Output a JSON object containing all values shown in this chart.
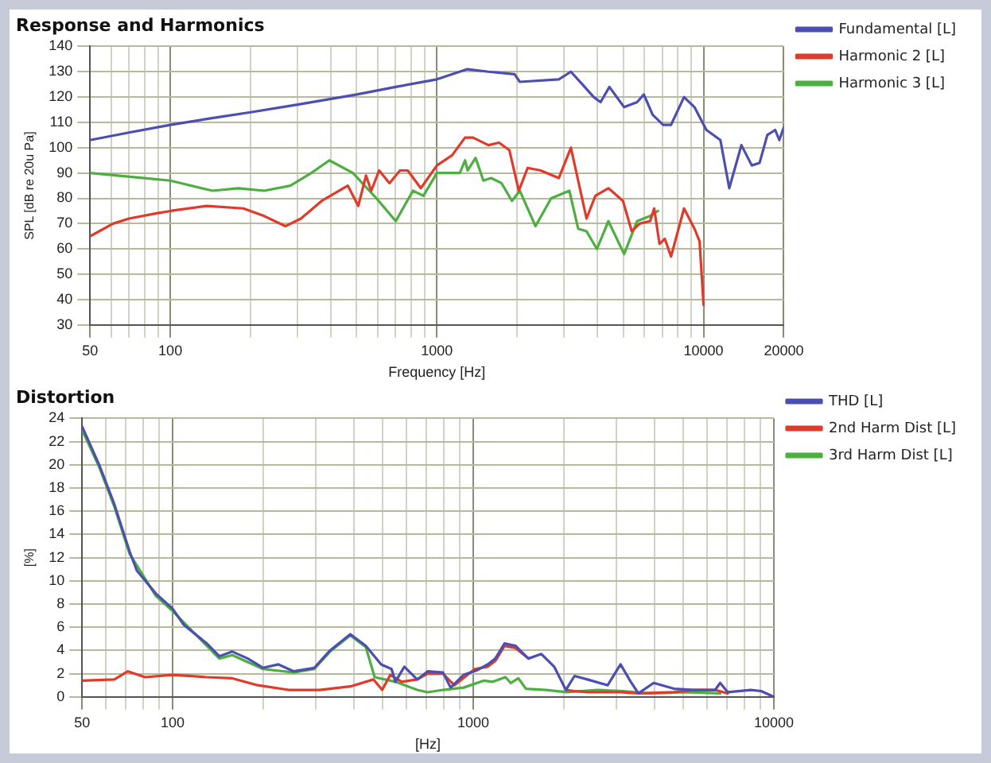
{
  "chart_data": [
    {
      "type": "line",
      "title": "Response and Harmonics",
      "xlabel": "Frequency [Hz]",
      "ylabel": "SPL [dB re 20u Pa]",
      "log": "x",
      "grid": true,
      "legend": "top right",
      "marker": "none",
      "line_style": "solid",
      "xlim": [
        50,
        20000
      ],
      "ylim": [
        30,
        140
      ],
      "xticks": [
        50,
        {
          "value": 60,
          "label": null
        },
        {
          "value": 70,
          "label": null
        },
        {
          "value": 80,
          "label": null
        },
        {
          "value": 90,
          "label": null
        },
        100,
        {
          "value": 200,
          "label": null
        },
        {
          "value": 300,
          "label": null
        },
        {
          "value": 400,
          "label": null
        },
        {
          "value": 500,
          "label": null
        },
        {
          "value": 600,
          "label": null
        },
        {
          "value": 700,
          "label": null
        },
        {
          "value": 800,
          "label": null
        },
        {
          "value": 900,
          "label": null
        },
        1000,
        {
          "value": 2000,
          "label": null
        },
        {
          "value": 3000,
          "label": null
        },
        {
          "value": 4000,
          "label": null
        },
        {
          "value": 5000,
          "label": null
        },
        {
          "value": 6000,
          "label": null
        },
        {
          "value": 7000,
          "label": null
        },
        {
          "value": 8000,
          "label": null
        },
        {
          "value": 9000,
          "label": null
        },
        10000,
        20000
      ],
      "yticks": [
        30,
        40,
        50,
        60,
        70,
        80,
        90,
        100,
        110,
        120,
        130,
        140
      ],
      "series": [
        {
          "name": "Fundamental [L]",
          "color": "#4b4fb0",
          "x": [
            50,
            70,
            100,
            150,
            200,
            300,
            500,
            700,
            1000,
            1300,
            1560,
            1956,
            2046,
            2865,
            3181,
            3512,
            3873,
            4110,
            4436,
            5037,
            5634,
            5973,
            6443,
            7057,
            7553,
            8450,
            9248,
            10250,
            11570,
            12490,
            13870,
            15170,
            16230,
            17350,
            18570,
            19240,
            20000
          ],
          "values": [
            103,
            106,
            109,
            112,
            114,
            117,
            121,
            124,
            127,
            131,
            130,
            129,
            126,
            127,
            130,
            125,
            120,
            118,
            124,
            116,
            118,
            121,
            113,
            109,
            109,
            120,
            116,
            107,
            103,
            84,
            101,
            93,
            94,
            105,
            107,
            103,
            108
          ]
        },
        {
          "name": "Harmonic 2 [L]",
          "color": "#e03a2a",
          "x": [
            50,
            61,
            70,
            88,
            100,
            137,
            188,
            225,
            270,
            309,
            370,
            463,
            507,
            542,
            567,
            607,
            664,
            727,
            777,
            870,
            1000,
            1140,
            1275,
            1365,
            1560,
            1710,
            1870,
            2028,
            2189,
            2449,
            2865,
            3181,
            3387,
            3640,
            3929,
            4397,
            4986,
            5380,
            5760,
            6300,
            6530,
            6837,
            7160,
            7553,
            8450,
            9248,
            9665,
            10000
          ],
          "values": [
            65,
            70,
            72,
            74,
            75,
            77,
            76,
            73,
            69,
            72,
            79,
            85,
            77,
            89,
            83,
            91,
            86,
            91,
            91,
            84,
            93,
            97,
            104,
            104,
            101,
            102,
            99,
            83,
            92,
            91,
            88,
            100,
            87,
            72,
            81,
            84,
            79,
            67,
            70,
            71,
            76,
            62,
            64,
            57,
            76,
            68,
            63,
            38
          ]
        },
        {
          "name": "Harmonic 3 [L]",
          "color": "#4caf3f",
          "x": [
            50,
            80,
            100,
            144,
            180,
            225,
            282,
            338,
            395,
            484,
            593,
            701,
            813,
            890,
            1000,
            1219,
            1275,
            1304,
            1396,
            1494,
            1597,
            1746,
            1912,
            2046,
            2343,
            2681,
            3139,
            3387,
            3640,
            3983,
            4397,
            5037,
            5634,
            6300,
            6745
          ],
          "values": [
            90,
            88,
            87,
            83,
            84,
            83,
            85,
            90,
            95,
            90,
            80,
            71,
            83,
            81,
            90,
            90,
            95,
            91,
            96,
            87,
            88,
            86,
            79,
            83,
            69,
            80,
            83,
            68,
            67,
            60,
            71,
            58,
            71,
            73,
            75
          ]
        }
      ]
    },
    {
      "type": "line",
      "title": "Distortion",
      "xlabel": "[Hz]",
      "ylabel": "[%]",
      "log": "x",
      "grid": true,
      "legend": "top right",
      "marker": "none",
      "line_style": "solid",
      "xlim": [
        50,
        10000
      ],
      "ylim": [
        0,
        24
      ],
      "xticks": [
        50,
        {
          "value": 60,
          "label": null
        },
        {
          "value": 70,
          "label": null
        },
        {
          "value": 80,
          "label": null
        },
        {
          "value": 90,
          "label": null
        },
        100,
        {
          "value": 200,
          "label": null
        },
        {
          "value": 300,
          "label": null
        },
        {
          "value": 400,
          "label": null
        },
        {
          "value": 500,
          "label": null
        },
        {
          "value": 600,
          "label": null
        },
        {
          "value": 700,
          "label": null
        },
        {
          "value": 800,
          "label": null
        },
        {
          "value": 900,
          "label": null
        },
        1000,
        {
          "value": 2000,
          "label": null
        },
        {
          "value": 3000,
          "label": null
        },
        {
          "value": 4000,
          "label": null
        },
        {
          "value": 5000,
          "label": null
        },
        {
          "value": 6000,
          "label": null
        },
        {
          "value": 7000,
          "label": null
        },
        {
          "value": 8000,
          "label": null
        },
        {
          "value": 9000,
          "label": null
        },
        10000
      ],
      "yticks": [
        0,
        2,
        4,
        6,
        8,
        10,
        12,
        14,
        16,
        18,
        20,
        22,
        24
      ],
      "series": [
        {
          "name": "THD [L]",
          "color": "#4b4fb0",
          "x": [
            50,
            57,
            64,
            72,
            76,
            88,
            100,
            109,
            130,
            143,
            158,
            178,
            200,
            225,
            253,
            296,
            334,
            390,
            439,
            494,
            535,
            551,
            590,
            651,
            705,
            793,
            841,
            929,
            1032,
            1117,
            1184,
            1271,
            1384,
            1526,
            1685,
            1859,
            2033,
            2172,
            2398,
            2800,
            3090,
            3342,
            3543,
            3983,
            4656,
            5453,
            6378,
            6630,
            7027,
            8380,
            9070,
            10000
          ],
          "values": [
            23.3,
            20,
            16.6,
            12.5,
            10.9,
            8.9,
            7.6,
            6.2,
            4.6,
            3.5,
            3.9,
            3.3,
            2.5,
            2.8,
            2.2,
            2.5,
            4,
            5.4,
            4.4,
            2.8,
            2.4,
            1.3,
            2.6,
            1.5,
            2.2,
            2.1,
            0.8,
            1.9,
            2.3,
            2.8,
            3.3,
            4.6,
            4.4,
            3.3,
            3.7,
            2.6,
            0.6,
            1.8,
            1.5,
            1,
            2.8,
            1.3,
            0.3,
            1.2,
            0.7,
            0.6,
            0.6,
            1.2,
            0.4,
            0.6,
            0.5,
            0
          ]
        },
        {
          "name": "2nd Harm Dist [L]",
          "color": "#e03a2a",
          "x": [
            50,
            64,
            71,
            81,
            100,
            130,
            158,
            192,
            243,
            308,
            390,
            466,
            498,
            530,
            578,
            651,
            705,
            793,
            865,
            1012,
            1117,
            1184,
            1271,
            1384,
            1526,
            1685,
            1859,
            2033,
            2172,
            2398,
            2800,
            3090,
            3543,
            4656,
            5453,
            6378,
            7027
          ],
          "values": [
            1.4,
            1.5,
            2.2,
            1.7,
            1.9,
            1.7,
            1.6,
            1,
            0.6,
            0.6,
            0.9,
            1.5,
            0.6,
            1.9,
            1.3,
            1.5,
            2,
            2,
            1,
            2.4,
            2.6,
            3.1,
            4.4,
            4.2,
            3.3,
            null,
            null,
            0.6,
            0.5,
            0.4,
            0.4,
            0.4,
            0.3,
            0.4,
            0.6,
            0.6,
            0.3
          ]
        },
        {
          "name": "3rd Harm Dist [L]",
          "color": "#4caf3f",
          "x": [
            50,
            57,
            64,
            72,
            88,
            100,
            130,
            143,
            158,
            200,
            253,
            296,
            334,
            390,
            439,
            470,
            551,
            651,
            705,
            793,
            929,
            1086,
            1161,
            1280,
            1332,
            1413,
            1498,
            1750,
            2046,
            2588,
            3148,
            3837,
            5047,
            6630
          ],
          "values": [
            23,
            19.8,
            16.4,
            12.3,
            8.7,
            7.4,
            4.4,
            3.3,
            3.6,
            2.4,
            2.1,
            2.4,
            3.9,
            5.3,
            4.3,
            1.7,
            1.3,
            0.6,
            0.4,
            0.6,
            0.8,
            1.4,
            1.3,
            1.7,
            1.2,
            1.6,
            0.7,
            0.6,
            0.4,
            0.6,
            0.5,
            0.3,
            0.4,
            0.3
          ]
        }
      ]
    }
  ]
}
